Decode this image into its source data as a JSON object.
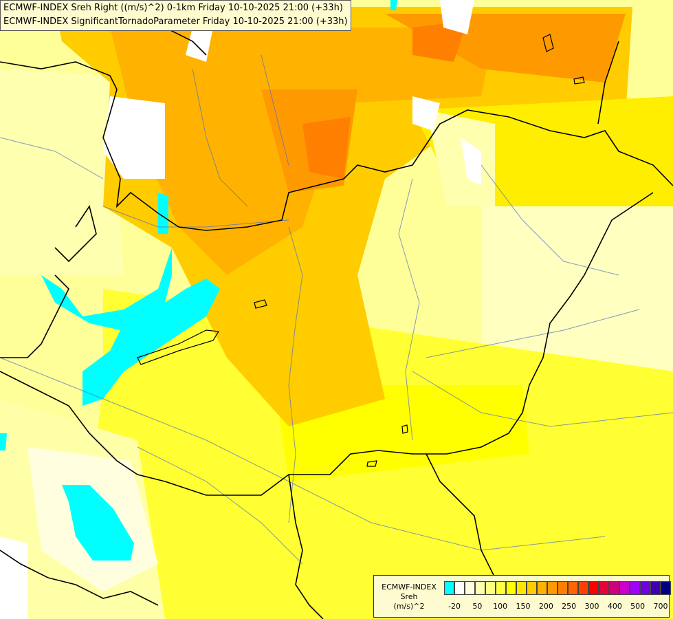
{
  "header": {
    "line1": "ECMWF-INDEX Sreh Right ((m/s)^2) 0-1km Friday 10-10-2025 21:00 (+33h)",
    "line2": "ECMWF-INDEX SignificantTornadoParameter Friday 10-10-2025 21:00 (+33h)"
  },
  "legend": {
    "line1": "ECMWF-INDEX",
    "line2": "Sreh",
    "line3": "(m/s)^2",
    "colors": [
      "#00ffff",
      "#ffffff",
      "#ffffe0",
      "#ffffb0",
      "#ffff80",
      "#ffff40",
      "#ffff00",
      "#ffe600",
      "#ffcc00",
      "#ffb300",
      "#ff9900",
      "#ff8000",
      "#ff6600",
      "#ff4000",
      "#ff0000",
      "#e6003c",
      "#d0007a",
      "#c800c8",
      "#a000ff",
      "#6e00e0",
      "#4000b0",
      "#000080"
    ],
    "ticks": [
      "-20",
      "50",
      "100",
      "150",
      "200",
      "250",
      "300",
      "400",
      "500",
      "700"
    ]
  }
}
